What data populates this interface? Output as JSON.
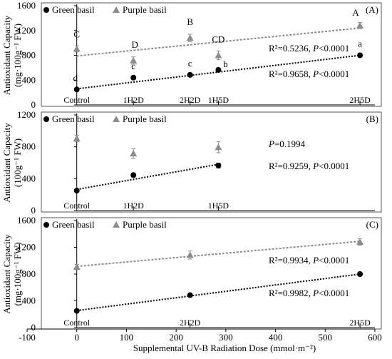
{
  "colors": {
    "green": "#000000",
    "purple": "#8c8c8c",
    "frame": "#555555",
    "axis": "#000000"
  },
  "shared_xlabel": "Supplemental UV-B Radiation Dose (mmol·m⁻²)",
  "chart_data": [
    {
      "type": "scatter",
      "panel_label": "(A)",
      "ylabel_lines": [
        "Antioxidant Capacity",
        "(mg·100g⁻¹ FW)"
      ],
      "ylim": [
        0,
        1600
      ],
      "yticks": [
        0,
        400,
        800,
        1200,
        1600
      ],
      "xlim": [
        -100,
        600
      ],
      "grid": false,
      "legend_position": "top-left",
      "dose_labels": [
        {
          "x": 0,
          "text": "Control"
        },
        {
          "x": 114,
          "text": "1H2D"
        },
        {
          "x": 228,
          "text": "2H2D"
        },
        {
          "x": 285,
          "text": "1H5D"
        },
        {
          "x": 570,
          "text": "2H5D"
        }
      ],
      "series": [
        {
          "name": "Green basil",
          "marker": "circle",
          "points": [
            {
              "x": 0,
              "y": 250,
              "err": 20,
              "letter": "d"
            },
            {
              "x": 114,
              "y": 440,
              "err": 25,
              "letter": "c"
            },
            {
              "x": 228,
              "y": 485,
              "err": 20,
              "letter": "c"
            },
            {
              "x": 285,
              "y": 565,
              "err": 25,
              "letter": "b"
            },
            {
              "x": 570,
              "y": 800,
              "err": 25,
              "letter": "a"
            }
          ],
          "trend": {
            "x": [
              0,
              570
            ],
            "y": [
              260,
              800
            ]
          },
          "stat_text": "R²=0.9658, P<0.0001"
        },
        {
          "name": "Purple basil",
          "marker": "triangle",
          "points": [
            {
              "x": 0,
              "y": 905,
              "err": 50,
              "letter": "C"
            },
            {
              "x": 114,
              "y": 715,
              "err": 60,
              "letter": "D"
            },
            {
              "x": 228,
              "y": 1080,
              "err": 60,
              "letter": "B"
            },
            {
              "x": 285,
              "y": 800,
              "err": 70,
              "letter": "CD"
            },
            {
              "x": 570,
              "y": 1280,
              "err": 50,
              "letter": "A"
            }
          ],
          "trend": {
            "x": [
              0,
              570
            ],
            "y": [
              790,
              1240
            ]
          },
          "stat_text": "R²=0.5236, P<0.0001"
        }
      ]
    },
    {
      "type": "scatter",
      "panel_label": "(B)",
      "ylabel_lines": [
        "Antioxidant Capacity",
        "(100g⁻¹ FW)"
      ],
      "ylim": [
        0,
        1200
      ],
      "yticks": [
        0,
        400,
        800,
        1200
      ],
      "xlim": [
        -100,
        600
      ],
      "grid": false,
      "legend_position": "top-left",
      "dose_labels": [
        {
          "x": 0,
          "text": "Control"
        },
        {
          "x": 114,
          "text": "1H2D"
        },
        {
          "x": 285,
          "text": "1H5D"
        }
      ],
      "series": [
        {
          "name": "Green basil",
          "marker": "circle",
          "points": [
            {
              "x": 0,
              "y": 250,
              "err": 15
            },
            {
              "x": 114,
              "y": 445,
              "err": 25
            },
            {
              "x": 285,
              "y": 565,
              "err": 30
            }
          ],
          "trend": {
            "x": [
              0,
              285
            ],
            "y": [
              265,
              580
            ]
          },
          "stat_text": "R²=0.9259, P<0.0001"
        },
        {
          "name": "Purple basil",
          "marker": "triangle",
          "points": [
            {
              "x": 0,
              "y": 905,
              "err": 40
            },
            {
              "x": 114,
              "y": 715,
              "err": 60
            },
            {
              "x": 285,
              "y": 795,
              "err": 70
            }
          ],
          "stat_text": "P=0.1994"
        }
      ]
    },
    {
      "type": "scatter",
      "panel_label": "(C)",
      "ylabel_lines": [
        "Antioxidant Capacity",
        "(mg·100g⁻¹ FW)"
      ],
      "ylim": [
        0,
        1600
      ],
      "yticks": [
        0,
        400,
        800,
        1200,
        1600
      ],
      "xlim": [
        -100,
        600
      ],
      "xticks": [
        -100,
        0,
        100,
        200,
        300,
        400,
        500,
        600
      ],
      "xlabel": "Supplemental UV-B Radiation Dose (mmol·m⁻²)",
      "grid": false,
      "legend_position": "top-left",
      "dose_labels": [
        {
          "x": 0,
          "text": "Control"
        },
        {
          "x": 228,
          "text": "2H2D"
        },
        {
          "x": 570,
          "text": "2H5D"
        }
      ],
      "series": [
        {
          "name": "Green basil",
          "marker": "circle",
          "points": [
            {
              "x": 0,
              "y": 250,
              "err": 15
            },
            {
              "x": 228,
              "y": 485,
              "err": 20
            },
            {
              "x": 570,
              "y": 800,
              "err": 20
            }
          ],
          "trend": {
            "x": [
              0,
              570
            ],
            "y": [
              255,
              800
            ]
          },
          "stat_text": "R²=0.9982, P<0.0001"
        },
        {
          "name": "Purple basil",
          "marker": "triangle",
          "points": [
            {
              "x": 0,
              "y": 905,
              "err": 40
            },
            {
              "x": 228,
              "y": 1085,
              "err": 60
            },
            {
              "x": 570,
              "y": 1280,
              "err": 50
            }
          ],
          "trend": {
            "x": [
              0,
              570
            ],
            "y": [
              915,
              1290
            ]
          },
          "stat_text": "R²=0.9934, P<0.0001"
        }
      ]
    }
  ]
}
